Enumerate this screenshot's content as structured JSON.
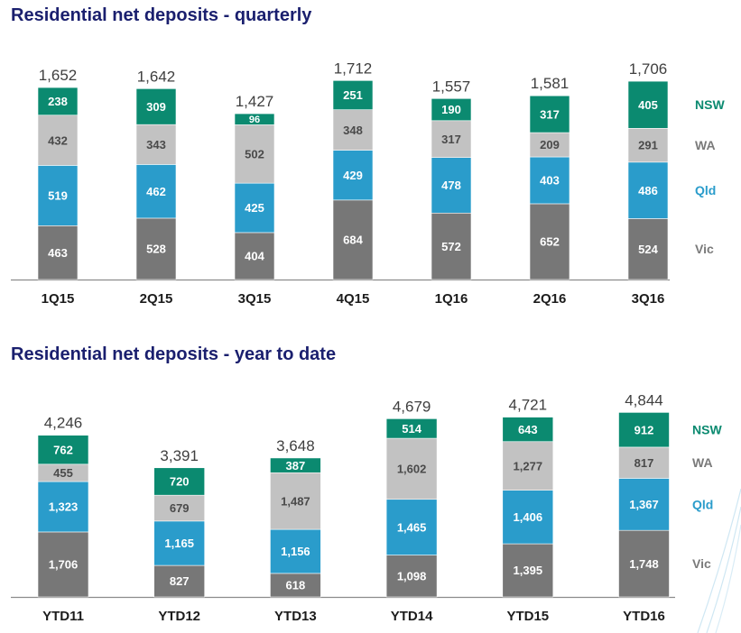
{
  "colors": {
    "title": "#1a1f6e",
    "total": "#3f3f3f",
    "axis": "#8c8c8c",
    "category": "#1c1c1c"
  },
  "chart_data": [
    {
      "type": "bar",
      "stacked": true,
      "title": "Residential net deposits - quarterly",
      "categories": [
        "1Q15",
        "2Q15",
        "3Q15",
        "4Q15",
        "1Q16",
        "2Q16",
        "3Q16"
      ],
      "totals": [
        "1,652",
        "1,642",
        "1,427",
        "1,712",
        "1,557",
        "1,581",
        "1,706"
      ],
      "series": [
        {
          "name": "Vic",
          "color": "#777777",
          "label_color": "#7a7a7a",
          "values": [
            463,
            528,
            404,
            684,
            572,
            652,
            524
          ],
          "labels": [
            "463",
            "528",
            "404",
            "684",
            "572",
            "652",
            "524"
          ]
        },
        {
          "name": "Qld",
          "color": "#2a9ccb",
          "label_color": "#2a9ccb",
          "values": [
            519,
            462,
            425,
            429,
            478,
            403,
            486
          ],
          "labels": [
            "519",
            "462",
            "425",
            "429",
            "478",
            "403",
            "486"
          ]
        },
        {
          "name": "WA",
          "color": "#c2c2c2",
          "label_color": "#7a7a7a",
          "values": [
            432,
            343,
            502,
            348,
            317,
            209,
            291
          ],
          "labels": [
            "432",
            "343",
            "502",
            "348",
            "317",
            "209",
            "291"
          ]
        },
        {
          "name": "NSW",
          "color": "#0b8a70",
          "label_color": "#0b8a70",
          "values": [
            238,
            309,
            96,
            251,
            190,
            317,
            405
          ],
          "labels": [
            "238",
            "309",
            "96",
            "251",
            "190",
            "317",
            "405"
          ]
        }
      ],
      "legend_placement": "right"
    },
    {
      "type": "bar",
      "stacked": true,
      "title": "Residential net deposits - year to date",
      "categories": [
        "YTD11",
        "YTD12",
        "YTD13",
        "YTD14",
        "YTD15",
        "YTD16"
      ],
      "totals": [
        "4,246",
        "3,391",
        "3,648",
        "4,679",
        "4,721",
        "4,844"
      ],
      "series": [
        {
          "name": "Vic",
          "color": "#777777",
          "label_color": "#7a7a7a",
          "values": [
            1706,
            827,
            618,
            1098,
            1395,
            1748
          ],
          "labels": [
            "1,706",
            "827",
            "618",
            "1,098",
            "1,395",
            "1,748"
          ]
        },
        {
          "name": "Qld",
          "color": "#2a9ccb",
          "label_color": "#2a9ccb",
          "values": [
            1323,
            1165,
            1156,
            1465,
            1406,
            1367
          ],
          "labels": [
            "1,323",
            "1,165",
            "1,156",
            "1,465",
            "1,406",
            "1,367"
          ]
        },
        {
          "name": "WA",
          "color": "#c2c2c2",
          "label_color": "#7a7a7a",
          "values": [
            455,
            679,
            1487,
            1602,
            1277,
            817
          ],
          "labels": [
            "455",
            "679",
            "1,487",
            "1,602",
            "1,277",
            "817"
          ]
        },
        {
          "name": "NSW",
          "color": "#0b8a70",
          "label_color": "#0b8a70",
          "values": [
            762,
            720,
            387,
            514,
            643,
            912
          ],
          "labels": [
            "762",
            "720",
            "387",
            "514",
            "643",
            "912"
          ]
        }
      ],
      "legend_placement": "right"
    }
  ]
}
